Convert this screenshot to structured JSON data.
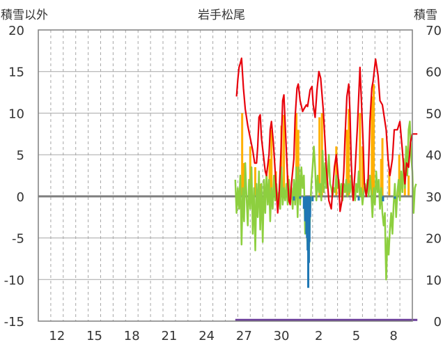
{
  "chart_data": {
    "type": "line",
    "title": "岩手松尾",
    "left_axis_label": "積雪以外",
    "right_axis_label": "積雪",
    "y_left": {
      "min": -15,
      "max": 20,
      "ticks": [
        "20",
        "15",
        "10",
        "5",
        "0",
        "-5",
        "-10",
        "-15"
      ]
    },
    "y_right": {
      "min": 0,
      "max": 70,
      "ticks": [
        "70",
        "60",
        "50",
        "40",
        "30",
        "20",
        "10",
        "0"
      ]
    },
    "x": {
      "start": 0,
      "end": 30,
      "ticks": [
        {
          "label": "12",
          "x": 1
        },
        {
          "label": "15",
          "x": 4
        },
        {
          "label": "18",
          "x": 7
        },
        {
          "label": "21",
          "x": 10
        },
        {
          "label": "24",
          "x": 13
        },
        {
          "label": "27",
          "x": 16
        },
        {
          "label": "30",
          "x": 19
        },
        {
          "label": "2",
          "x": 22
        },
        {
          "label": "5",
          "x": 25
        },
        {
          "label": "8",
          "x": 28
        }
      ]
    },
    "colors": {
      "temperature": "#e8000b",
      "precipitation": "#ffb000",
      "wind": "#8dcf3f",
      "negative": "#1f77b4",
      "snow": "#6a3d9a",
      "zero_line": "#7f7f7f",
      "grid": "#a6a6a6"
    },
    "series": [
      {
        "key": "temperature",
        "axis": "left",
        "values": [
          [
            15.9,
            12.0
          ],
          [
            16.0,
            14.0
          ],
          [
            16.1,
            15.5
          ],
          [
            16.2,
            16.0
          ],
          [
            16.3,
            16.6
          ],
          [
            16.45,
            13.0
          ],
          [
            16.6,
            10.5
          ],
          [
            16.8,
            8.5
          ],
          [
            17.0,
            7.0
          ],
          [
            17.2,
            5.5
          ],
          [
            17.35,
            4.0
          ],
          [
            17.5,
            4.0
          ],
          [
            17.6,
            6.0
          ],
          [
            17.7,
            9.5
          ],
          [
            17.8,
            9.8
          ],
          [
            17.9,
            7.0
          ],
          [
            18.05,
            5.0
          ],
          [
            18.2,
            3.0
          ],
          [
            18.3,
            2.5
          ],
          [
            18.5,
            5.0
          ],
          [
            18.6,
            8.0
          ],
          [
            18.7,
            9.0
          ],
          [
            18.85,
            6.5
          ],
          [
            19.0,
            3.0
          ],
          [
            19.1,
            0.5
          ],
          [
            19.2,
            -2.0
          ],
          [
            19.3,
            0.0
          ],
          [
            19.45,
            5.0
          ],
          [
            19.6,
            11.5
          ],
          [
            19.7,
            12.2
          ],
          [
            19.85,
            7.0
          ],
          [
            20.0,
            2.0
          ],
          [
            20.1,
            -0.5
          ],
          [
            20.2,
            -1.0
          ],
          [
            20.3,
            1.5
          ],
          [
            20.5,
            4.5
          ],
          [
            20.6,
            9.5
          ],
          [
            20.75,
            13.0
          ],
          [
            20.85,
            13.5
          ],
          [
            21.0,
            11.5
          ],
          [
            21.2,
            10.2
          ],
          [
            21.3,
            10.5
          ],
          [
            21.5,
            11.0
          ],
          [
            21.6,
            10.8
          ],
          [
            21.8,
            12.8
          ],
          [
            21.95,
            13.2
          ],
          [
            22.05,
            11.0
          ],
          [
            22.2,
            9.5
          ],
          [
            22.35,
            12.8
          ],
          [
            22.5,
            15.0
          ],
          [
            22.65,
            14.2
          ],
          [
            22.85,
            10.5
          ],
          [
            23.0,
            6.5
          ],
          [
            23.1,
            3.5
          ],
          [
            23.3,
            -0.5
          ],
          [
            23.5,
            -1.5
          ],
          [
            23.75,
            3.5
          ],
          [
            23.9,
            5.0
          ],
          [
            24.1,
            1.5
          ],
          [
            24.2,
            -1.8
          ],
          [
            24.35,
            -0.5
          ],
          [
            24.5,
            3.0
          ],
          [
            24.6,
            7.0
          ],
          [
            24.75,
            12.0
          ],
          [
            24.9,
            13.5
          ],
          [
            25.0,
            10.0
          ],
          [
            25.1,
            4.0
          ],
          [
            25.25,
            -0.5
          ],
          [
            25.4,
            3.0
          ],
          [
            25.6,
            8.5
          ],
          [
            25.8,
            15.5
          ],
          [
            25.9,
            12.0
          ],
          [
            26.05,
            6.5
          ],
          [
            26.15,
            1.5
          ],
          [
            26.3,
            0.0
          ],
          [
            26.45,
            2.0
          ],
          [
            26.6,
            9.0
          ],
          [
            26.75,
            13.0
          ],
          [
            26.85,
            13.8
          ],
          [
            27.05,
            16.5
          ],
          [
            27.25,
            14.5
          ],
          [
            27.4,
            11.5
          ],
          [
            27.6,
            11.0
          ],
          [
            27.75,
            9.5
          ],
          [
            27.9,
            8.0
          ],
          [
            28.05,
            4.5
          ],
          [
            28.2,
            2.5
          ],
          [
            28.4,
            4.5
          ],
          [
            28.55,
            8.0
          ],
          [
            28.8,
            8.0
          ],
          [
            29.0,
            9.0
          ],
          [
            29.2,
            5.5
          ],
          [
            29.4,
            1.5
          ],
          [
            29.55,
            4.0
          ],
          [
            29.7,
            3.5
          ],
          [
            29.85,
            6.5
          ],
          [
            30.0,
            7.5
          ],
          [
            30.4,
            7.5
          ]
        ]
      },
      {
        "key": "precipitation",
        "axis": "left",
        "bars": [
          [
            16.35,
            10.0
          ],
          [
            16.5,
            4.0
          ],
          [
            17.0,
            6.0
          ],
          [
            17.4,
            3.5
          ],
          [
            17.8,
            1.5
          ],
          [
            18.55,
            4.5
          ],
          [
            18.7,
            8.0
          ],
          [
            19.05,
            3.0
          ],
          [
            19.5,
            8.5
          ],
          [
            19.7,
            9.8
          ],
          [
            20.0,
            2.5
          ],
          [
            20.7,
            10.0
          ],
          [
            20.85,
            8.0
          ],
          [
            22.55,
            9.5
          ],
          [
            22.75,
            10.0
          ],
          [
            23.9,
            6.0
          ],
          [
            24.75,
            8.0
          ],
          [
            24.9,
            10.5
          ],
          [
            25.8,
            10.0
          ],
          [
            26.0,
            6.0
          ],
          [
            26.75,
            12.0
          ],
          [
            26.9,
            13.5
          ],
          [
            27.5,
            4.5
          ],
          [
            27.6,
            7.0
          ],
          [
            28.15,
            3.0
          ],
          [
            28.95,
            5.0
          ],
          [
            29.4,
            2.0
          ],
          [
            29.7,
            2.5
          ]
        ]
      },
      {
        "key": "wind",
        "axis": "left",
        "values": [
          [
            15.8,
            2.0
          ],
          [
            15.9,
            -2.0
          ],
          [
            16.0,
            1.0
          ],
          [
            16.1,
            -1.5
          ],
          [
            16.2,
            2.5
          ],
          [
            16.3,
            -5.8
          ],
          [
            16.4,
            1.0
          ],
          [
            16.5,
            -3.0
          ],
          [
            16.6,
            4.0
          ],
          [
            16.7,
            0.0
          ],
          [
            16.8,
            -3.5
          ],
          [
            16.9,
            2.0
          ],
          [
            17.0,
            -1.5
          ],
          [
            17.1,
            3.5
          ],
          [
            17.2,
            -4.5
          ],
          [
            17.3,
            1.0
          ],
          [
            17.4,
            -6.5
          ],
          [
            17.5,
            1.5
          ],
          [
            17.6,
            -2.5
          ],
          [
            17.7,
            3.0
          ],
          [
            17.8,
            -4.0
          ],
          [
            17.9,
            1.5
          ],
          [
            18.0,
            -5.5
          ],
          [
            18.1,
            2.0
          ],
          [
            18.2,
            -2.0
          ],
          [
            18.3,
            3.0
          ],
          [
            18.4,
            -1.0
          ],
          [
            18.5,
            2.0
          ],
          [
            18.6,
            -3.0
          ],
          [
            18.7,
            1.0
          ],
          [
            18.8,
            -1.5
          ],
          [
            18.9,
            2.5
          ],
          [
            19.0,
            -0.5
          ],
          [
            19.1,
            1.5
          ],
          [
            19.2,
            -1.0
          ],
          [
            19.3,
            0.5
          ],
          [
            19.4,
            -1.5
          ],
          [
            19.5,
            3.5
          ],
          [
            19.6,
            -1.0
          ],
          [
            19.7,
            1.0
          ],
          [
            19.8,
            -0.5
          ],
          [
            19.9,
            1.5
          ],
          [
            20.0,
            -1.0
          ],
          [
            20.1,
            2.0
          ],
          [
            20.2,
            -0.5
          ],
          [
            20.3,
            1.0
          ],
          [
            20.4,
            -1.5
          ],
          [
            20.5,
            2.0
          ],
          [
            20.6,
            -1.0
          ],
          [
            20.7,
            3.5
          ],
          [
            20.8,
            -2.5
          ],
          [
            20.9,
            3.5
          ],
          [
            21.0,
            -1.0
          ],
          [
            21.1,
            3.5
          ],
          [
            21.2,
            1.0
          ],
          [
            21.3,
            2.5
          ],
          [
            21.4,
            -4.5
          ],
          [
            21.5,
            -3.5
          ],
          [
            21.6,
            -6.0
          ],
          [
            21.7,
            -7.5
          ],
          [
            21.8,
            -2.0
          ],
          [
            21.9,
            1.5
          ],
          [
            22.0,
            3.5
          ],
          [
            22.1,
            6.0
          ],
          [
            22.2,
            3.5
          ],
          [
            22.3,
            -0.5
          ],
          [
            22.4,
            2.5
          ],
          [
            22.5,
            0.5
          ],
          [
            22.6,
            1.5
          ],
          [
            22.7,
            -0.5
          ],
          [
            22.8,
            5.5
          ],
          [
            22.9,
            0.5
          ],
          [
            23.0,
            4.0
          ],
          [
            23.1,
            1.0
          ],
          [
            23.2,
            2.5
          ],
          [
            23.3,
            5.0
          ],
          [
            23.4,
            1.5
          ],
          [
            23.5,
            1.0
          ],
          [
            23.6,
            0.0
          ],
          [
            23.7,
            1.0
          ],
          [
            23.8,
            0.5
          ],
          [
            23.9,
            2.5
          ],
          [
            24.0,
            1.0
          ],
          [
            24.1,
            2.0
          ],
          [
            24.2,
            0.0
          ],
          [
            24.3,
            1.5
          ],
          [
            24.4,
            -0.5
          ],
          [
            24.5,
            1.5
          ],
          [
            24.6,
            0.5
          ],
          [
            24.7,
            2.0
          ],
          [
            24.8,
            0.0
          ],
          [
            24.9,
            1.5
          ],
          [
            25.0,
            0.5
          ],
          [
            25.1,
            2.5
          ],
          [
            25.2,
            0.0
          ],
          [
            25.3,
            1.0
          ],
          [
            25.4,
            -0.5
          ],
          [
            25.5,
            1.5
          ],
          [
            25.6,
            0.5
          ],
          [
            25.7,
            3.0
          ],
          [
            25.8,
            0.0
          ],
          [
            25.9,
            1.0
          ],
          [
            26.0,
            -1.0
          ],
          [
            26.1,
            0.5
          ],
          [
            26.2,
            1.5
          ],
          [
            26.3,
            0.5
          ],
          [
            26.4,
            2.0
          ],
          [
            26.5,
            0.0
          ],
          [
            26.6,
            2.5
          ],
          [
            26.7,
            0.5
          ],
          [
            26.8,
            -2.5
          ],
          [
            26.9,
            1.0
          ],
          [
            27.0,
            -1.0
          ],
          [
            27.1,
            3.0
          ],
          [
            27.2,
            0.5
          ],
          [
            27.3,
            2.0
          ],
          [
            27.4,
            -1.5
          ],
          [
            27.5,
            1.0
          ],
          [
            27.6,
            -2.0
          ],
          [
            27.7,
            -3.5
          ],
          [
            27.8,
            -2.0
          ],
          [
            27.85,
            -6.5
          ],
          [
            27.9,
            -10.0
          ],
          [
            28.0,
            -5.0
          ],
          [
            28.1,
            -7.0
          ],
          [
            28.2,
            -4.0
          ],
          [
            28.3,
            -2.0
          ],
          [
            28.4,
            -4.5
          ],
          [
            28.5,
            -1.0
          ],
          [
            28.6,
            1.5
          ],
          [
            28.7,
            -2.5
          ],
          [
            28.8,
            0.5
          ],
          [
            28.9,
            2.0
          ],
          [
            29.0,
            -0.5
          ],
          [
            29.1,
            3.0
          ],
          [
            29.2,
            0.5
          ],
          [
            29.3,
            4.5
          ],
          [
            29.4,
            1.0
          ],
          [
            29.5,
            6.0
          ],
          [
            29.6,
            2.5
          ],
          [
            29.7,
            8.0
          ],
          [
            29.8,
            9.0
          ],
          [
            29.9,
            5.0
          ],
          [
            30.0,
            3.0
          ],
          [
            30.1,
            -2.0
          ],
          [
            30.2,
            1.0
          ],
          [
            30.3,
            1.5
          ]
        ]
      },
      {
        "key": "negative",
        "axis": "left",
        "bars": [
          [
            20.5,
            -0.5
          ],
          [
            21.0,
            -0.3
          ],
          [
            21.3,
            -1.5
          ],
          [
            21.4,
            -3.0
          ],
          [
            21.5,
            -4.5
          ],
          [
            21.55,
            -5.0
          ],
          [
            21.6,
            -6.5
          ],
          [
            21.65,
            -11.0
          ],
          [
            21.7,
            -8.0
          ],
          [
            21.75,
            -5.5
          ],
          [
            21.8,
            -2.5
          ],
          [
            22.0,
            -0.6
          ],
          [
            25.7,
            -0.5
          ],
          [
            27.65,
            -0.6
          ],
          [
            28.6,
            -0.3
          ]
        ]
      },
      {
        "key": "snow",
        "axis": "right",
        "values": [
          [
            15.8,
            0.3
          ],
          [
            30.4,
            0.3
          ]
        ]
      }
    ]
  }
}
